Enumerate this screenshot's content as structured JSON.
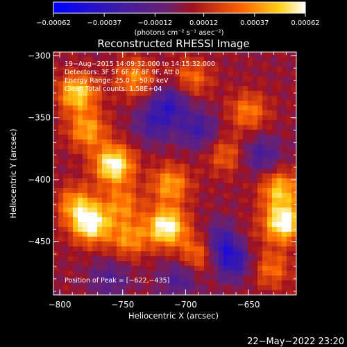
{
  "chart_data": {
    "type": "heatmap",
    "title": "Reconstructed RHESSI Image",
    "xlabel": "Heliocentric X (arcsec)",
    "ylabel": "Heliocentric Y (arcsec)",
    "xlim": [
      -805,
      -612
    ],
    "ylim": [
      -493,
      -297
    ],
    "x_ticks": [
      -800,
      -750,
      -700,
      -650
    ],
    "y_ticks": [
      -300,
      -350,
      -400,
      -450
    ],
    "x_tick_labels": [
      "−800",
      "−750",
      "−700",
      "−650"
    ],
    "y_tick_labels": [
      "−300",
      "−350",
      "−400",
      "−450"
    ],
    "colorbar": {
      "range": [
        -0.00062,
        0.00062
      ],
      "ticks": [
        -0.00062,
        -0.00037,
        -0.00012,
        0.00012,
        0.00037,
        0.00062
      ],
      "tick_labels": [
        "−0.00062",
        "−0.00037",
        "−0.00012",
        "0.00012",
        "0.00037",
        "0.00062"
      ],
      "unit": "(photons cm⁻² s⁻¹ asec⁻²)"
    },
    "annotations": [
      "19−Aug−2015 14:09:32.000 to 14:15:32.000",
      "Detectors: 3F 5F 6F 7F 8F 9F, Att 0",
      "Energy Range: 25.0 − 50.0 keV",
      "Clean    Total counts: 1.58E+04",
      "Position of Peak = [−622,−435]"
    ],
    "peak": {
      "x": -622,
      "y": -435
    },
    "bright_regions": [
      {
        "x": -786,
        "y": -330,
        "level": 0.8
      },
      {
        "x": -778,
        "y": -360,
        "level": 0.62
      },
      {
        "x": -757,
        "y": -388,
        "level": 1.0
      },
      {
        "x": -787,
        "y": -420,
        "level": 0.58
      },
      {
        "x": -775,
        "y": -436,
        "level": 0.95
      },
      {
        "x": -745,
        "y": -448,
        "level": 0.55
      },
      {
        "x": -750,
        "y": -420,
        "level": 0.5
      },
      {
        "x": -715,
        "y": -438,
        "level": 1.0
      },
      {
        "x": -712,
        "y": -404,
        "level": 0.62
      },
      {
        "x": -740,
        "y": -318,
        "level": 0.55
      },
      {
        "x": -695,
        "y": -318,
        "level": 0.45
      },
      {
        "x": -690,
        "y": -460,
        "level": 0.5
      },
      {
        "x": -660,
        "y": -450,
        "level": 0.45
      },
      {
        "x": -622,
        "y": -435,
        "level": 1.0
      },
      {
        "x": -625,
        "y": -408,
        "level": 0.7
      },
      {
        "x": -650,
        "y": -345,
        "level": 0.5
      },
      {
        "x": -668,
        "y": -380,
        "level": 0.4
      },
      {
        "x": -632,
        "y": -472,
        "level": 0.45
      }
    ],
    "dark_regions": [
      {
        "x": -668,
        "y": -450,
        "level": -0.8
      },
      {
        "x": -662,
        "y": -465,
        "level": -0.65
      },
      {
        "x": -712,
        "y": -338,
        "level": -0.55
      },
      {
        "x": -690,
        "y": -360,
        "level": -0.5
      },
      {
        "x": -725,
        "y": -355,
        "level": -0.45
      },
      {
        "x": -640,
        "y": -380,
        "level": -0.45
      },
      {
        "x": -705,
        "y": -480,
        "level": -0.4
      },
      {
        "x": -760,
        "y": -480,
        "level": -0.35
      }
    ]
  },
  "timestamp": "22−May−2022 23:20"
}
